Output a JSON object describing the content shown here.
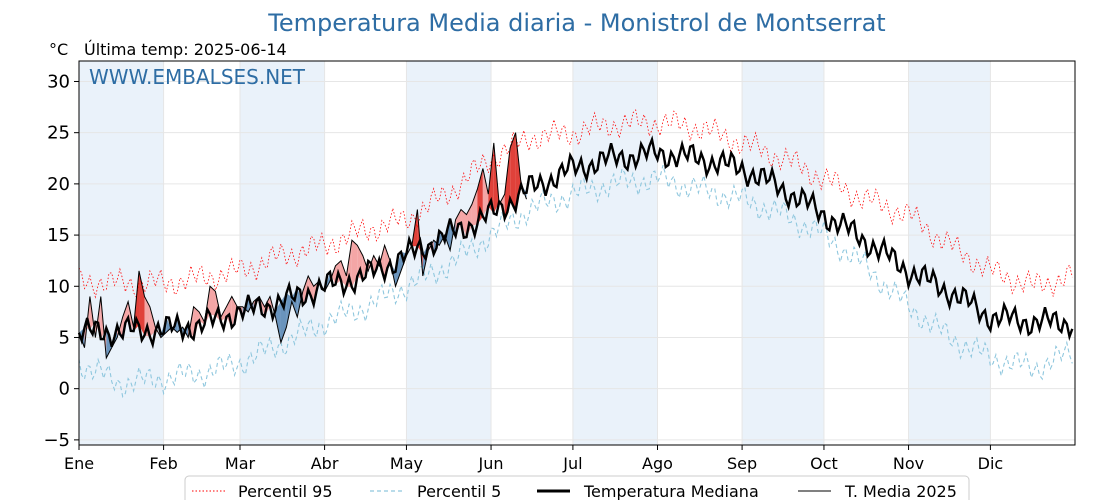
{
  "chart_data": {
    "type": "line",
    "title": "Temperatura Media diaria - Monistrol de Montserrat",
    "unit": "°C",
    "last_temp_label": "Última temp: 2025-06-14",
    "watermark": "WWW.EMBALSES.NET",
    "ylim": [
      -5.5,
      32
    ],
    "yticks": [
      -5,
      0,
      5,
      10,
      15,
      20,
      25,
      30
    ],
    "xlim": [
      0,
      365
    ],
    "months": [
      "Ene",
      "Feb",
      "Mar",
      "Abr",
      "May",
      "Jun",
      "Jul",
      "Ago",
      "Sep",
      "Oct",
      "Nov",
      "Dic"
    ],
    "month_start_days": [
      0,
      31,
      59,
      90,
      120,
      151,
      181,
      212,
      243,
      273,
      304,
      334
    ],
    "grid": true,
    "legend_position": "bottom-center",
    "colors": {
      "p95": "#ff0000",
      "p5": "#8fc7de",
      "median": "#000000",
      "current": "#000000",
      "above_fill": "#f4a6a6",
      "above_fill_dark": "#e0413a",
      "below_fill": "#6a94bd",
      "below_fill_dark": "#1b3f78",
      "band": "#eaf2fa",
      "title": "#2e6da4"
    },
    "series": [
      {
        "name": "Percentil 95",
        "style": "dotted",
        "knots_x": [
          0,
          15,
          31,
          45,
          59,
          75,
          90,
          105,
          120,
          135,
          151,
          165,
          181,
          195,
          212,
          227,
          243,
          258,
          273,
          288,
          304,
          319,
          334,
          350,
          364
        ],
        "knots_y": [
          10.5,
          10.3,
          10.3,
          10.8,
          11.5,
          13.0,
          14.0,
          15.5,
          16.5,
          19.0,
          22.5,
          24.5,
          25.0,
          25.8,
          26.0,
          25.5,
          24.0,
          22.5,
          20.5,
          18.5,
          17.0,
          14.0,
          11.5,
          10.0,
          11.0
        ]
      },
      {
        "name": "Percentil 5",
        "style": "dashed",
        "knots_x": [
          0,
          15,
          31,
          45,
          59,
          75,
          90,
          105,
          120,
          135,
          151,
          165,
          181,
          195,
          212,
          227,
          243,
          258,
          273,
          288,
          304,
          319,
          334,
          350,
          364
        ],
        "knots_y": [
          2.5,
          0.5,
          1.0,
          1.5,
          2.5,
          4.5,
          6.5,
          8.0,
          10.0,
          12.0,
          15.0,
          17.5,
          19.0,
          20.0,
          20.5,
          19.5,
          18.5,
          17.0,
          15.0,
          12.0,
          8.0,
          5.0,
          3.0,
          2.0,
          3.5
        ]
      },
      {
        "name": "Temperatura Mediana",
        "style": "thick",
        "knots_x": [
          0,
          15,
          31,
          45,
          59,
          75,
          90,
          105,
          120,
          135,
          151,
          165,
          181,
          195,
          212,
          227,
          243,
          258,
          273,
          288,
          304,
          319,
          334,
          350,
          364
        ],
        "knots_y": [
          5.5,
          5.6,
          5.8,
          6.2,
          7.5,
          8.5,
          10.0,
          11.0,
          13.0,
          15.0,
          17.0,
          19.5,
          21.5,
          22.5,
          23.0,
          22.5,
          21.5,
          19.5,
          17.0,
          14.5,
          11.5,
          9.5,
          7.0,
          6.5,
          6.5
        ]
      },
      {
        "name": "T. Media 2025",
        "style": "thin",
        "days": [
          0,
          2,
          4,
          6,
          8,
          10,
          12,
          14,
          16,
          18,
          20,
          22,
          24,
          26,
          28,
          30,
          32,
          34,
          36,
          38,
          40,
          42,
          44,
          46,
          48,
          50,
          52,
          54,
          56,
          58,
          60,
          62,
          64,
          66,
          68,
          70,
          72,
          74,
          76,
          78,
          80,
          82,
          84,
          86,
          88,
          90,
          92,
          94,
          96,
          98,
          100,
          102,
          104,
          106,
          108,
          110,
          112,
          114,
          116,
          118,
          120,
          122,
          124,
          126,
          128,
          130,
          132,
          134,
          136,
          138,
          140,
          142,
          144,
          146,
          148,
          150,
          152,
          154,
          156,
          158,
          160,
          162,
          164
        ],
        "values": [
          5.5,
          4.0,
          9.0,
          5.0,
          9.0,
          3.0,
          4.0,
          5.0,
          7.0,
          8.5,
          6.0,
          11.5,
          9.0,
          8.0,
          6.0,
          5.0,
          5.5,
          6.0,
          5.5,
          6.0,
          5.0,
          8.0,
          7.5,
          6.5,
          10.0,
          9.5,
          7.0,
          8.0,
          9.0,
          8.0,
          8.0,
          7.5,
          8.5,
          9.0,
          8.0,
          9.0,
          7.0,
          4.5,
          6.0,
          8.5,
          7.0,
          9.5,
          11.0,
          10.0,
          10.5,
          9.5,
          10.5,
          12.0,
          12.5,
          11.0,
          14.5,
          14.0,
          13.0,
          11.5,
          13.0,
          12.0,
          14.0,
          12.5,
          10.0,
          11.5,
          13.0,
          14.0,
          17.5,
          11.0,
          13.5,
          14.5,
          14.0,
          15.0,
          13.5,
          16.5,
          17.5,
          17.0,
          18.0,
          19.5,
          21.5,
          19.0,
          24.0,
          18.0,
          19.0,
          23.5,
          25.0,
          20.0,
          18.5
        ]
      }
    ]
  }
}
